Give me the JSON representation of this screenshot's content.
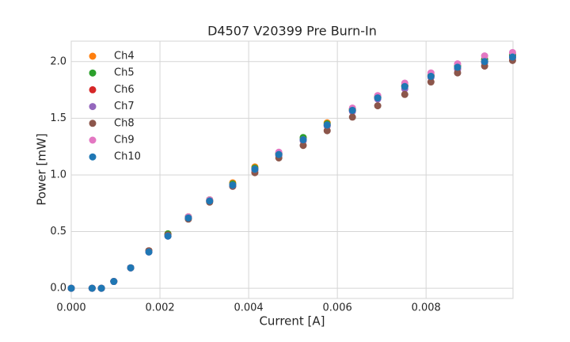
{
  "chart_data": {
    "type": "scatter",
    "title": "D4507 V20399 Pre Burn-In",
    "x_label": "Current [A]",
    "y_label": "Power [mW]",
    "x": [
      0.0,
      0.00047,
      0.00068,
      0.00096,
      0.00134,
      0.00175,
      0.00218,
      0.00264,
      0.00312,
      0.00364,
      0.00414,
      0.00468,
      0.00523,
      0.00577,
      0.00634,
      0.00691,
      0.00752,
      0.00811,
      0.00871,
      0.00932,
      0.00995
    ],
    "series": [
      {
        "name": "Ch4",
        "color": "#ff7f0e",
        "values": [
          0,
          0,
          0,
          0.06,
          0.18,
          0.33,
          0.48,
          0.63,
          0.78,
          0.93,
          1.07,
          1.19,
          1.32,
          1.46,
          1.58,
          1.69,
          1.79,
          1.88,
          1.96,
          2.02,
          2.06
        ]
      },
      {
        "name": "Ch5",
        "color": "#2ca02c",
        "values": [
          0,
          0,
          0,
          0.06,
          0.18,
          0.33,
          0.48,
          0.63,
          0.78,
          0.92,
          1.06,
          1.19,
          1.33,
          1.45,
          1.58,
          1.69,
          1.79,
          1.88,
          1.96,
          2.02,
          2.06
        ]
      },
      {
        "name": "Ch6",
        "color": "#d62728",
        "values": [
          0,
          0,
          0,
          0.06,
          0.18,
          0.33,
          0.47,
          0.62,
          0.77,
          0.91,
          1.05,
          1.18,
          1.31,
          1.44,
          1.57,
          1.68,
          1.78,
          1.87,
          1.94,
          2.0,
          2.04
        ]
      },
      {
        "name": "Ch7",
        "color": "#9467bd",
        "values": [
          0,
          0,
          0,
          0.06,
          0.18,
          0.32,
          0.46,
          0.62,
          0.77,
          0.9,
          1.04,
          1.17,
          1.3,
          1.43,
          1.56,
          1.67,
          1.76,
          1.86,
          1.93,
          1.99,
          2.03
        ]
      },
      {
        "name": "Ch8",
        "color": "#8c564b",
        "values": [
          0,
          0,
          0,
          0.06,
          0.18,
          0.33,
          0.47,
          0.61,
          0.76,
          0.9,
          1.02,
          1.15,
          1.26,
          1.39,
          1.51,
          1.61,
          1.71,
          1.82,
          1.9,
          1.96,
          2.01
        ]
      },
      {
        "name": "Ch9",
        "color": "#e377c2",
        "values": [
          0,
          0,
          0,
          0.06,
          0.18,
          0.32,
          0.46,
          0.63,
          0.78,
          0.91,
          1.05,
          1.2,
          1.31,
          1.44,
          1.59,
          1.7,
          1.81,
          1.9,
          1.98,
          2.05,
          2.08
        ]
      },
      {
        "name": "Ch10",
        "color": "#1f77b4",
        "values": [
          0,
          0,
          0,
          0.06,
          0.18,
          0.32,
          0.46,
          0.62,
          0.77,
          0.91,
          1.05,
          1.18,
          1.31,
          1.44,
          1.57,
          1.68,
          1.78,
          1.87,
          1.95,
          2.0,
          2.04
        ]
      }
    ],
    "xlim": [
      0,
      0.00996
    ],
    "xticks": [
      {
        "value": 0,
        "label": "0.000"
      },
      {
        "value": 0.002,
        "label": "0.002"
      },
      {
        "value": 0.004,
        "label": "0.004"
      },
      {
        "value": 0.006,
        "label": "0.006"
      },
      {
        "value": 0.008,
        "label": "0.008"
      }
    ],
    "ylim": [
      -0.09,
      2.18
    ],
    "yticks": [
      {
        "value": 0,
        "label": "0.0"
      },
      0.5,
      {
        "value": 1,
        "label": "1.0"
      },
      1.5,
      {
        "value": 2,
        "label": "2.0"
      }
    ],
    "grid": true,
    "legend": "upper left"
  }
}
